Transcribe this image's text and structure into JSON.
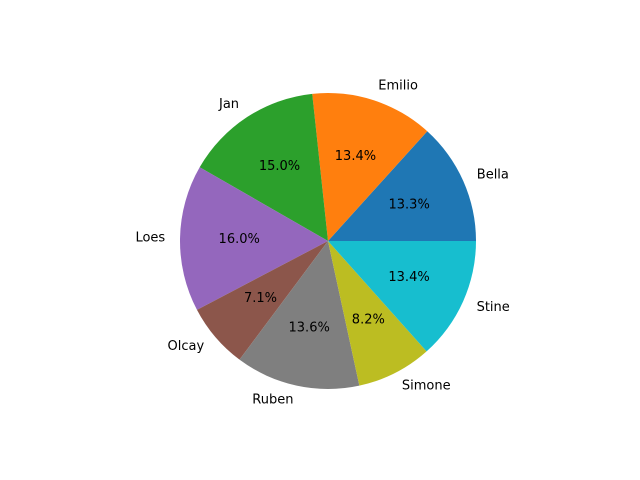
{
  "chart_data": {
    "type": "pie",
    "labels": [
      "Bella",
      "Emilio",
      "Jan",
      "Loes",
      "Olcay",
      "Ruben",
      "Simone",
      "Stine"
    ],
    "percentages": [
      13.3,
      13.4,
      15.0,
      16.0,
      7.1,
      13.6,
      8.2,
      13.4
    ],
    "percentage_labels": [
      "13.3%",
      "13.4%",
      "15.0%",
      "16.0%",
      "7.1%",
      "13.6%",
      "8.2%",
      "13.4%"
    ],
    "colors": [
      "#1f77b4",
      "#ff7f0e",
      "#2ca02c",
      "#9467bd",
      "#8c564b",
      "#7f7f7f",
      "#bcbd22",
      "#17becf"
    ],
    "start_angle_deg": 0,
    "direction": "counterclockwise",
    "title": "",
    "legend": "none"
  }
}
